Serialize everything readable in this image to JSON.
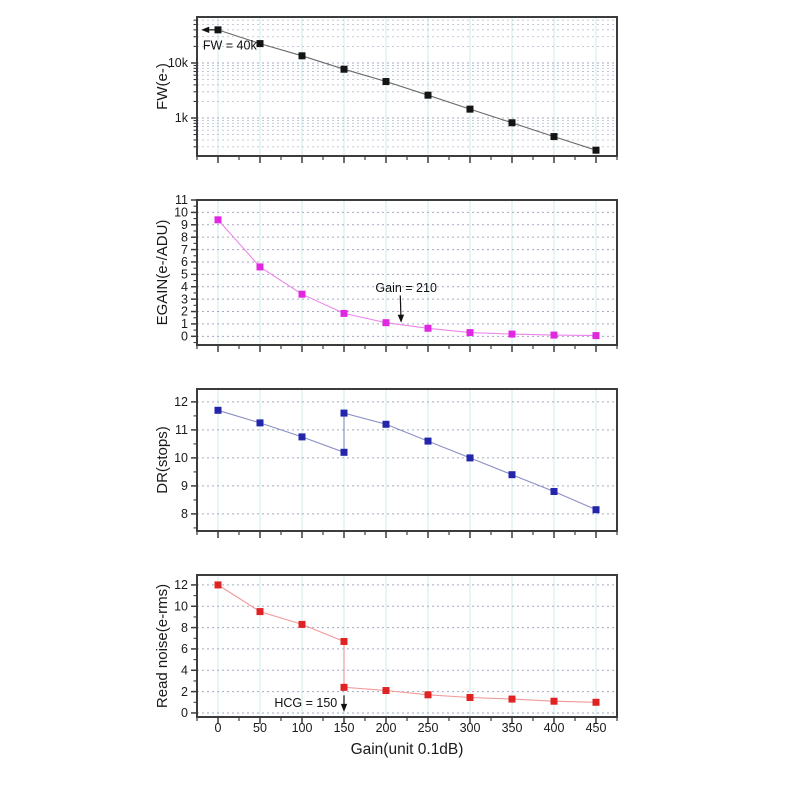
{
  "figure": {
    "background": "#ffffff",
    "x_axis": {
      "title": "Gain(unit 0.1dB)",
      "tick_values": [
        0,
        50,
        100,
        150,
        200,
        250,
        300,
        350,
        400,
        450
      ],
      "tick_labels": [
        "0",
        "50",
        "100",
        "150",
        "200",
        "250",
        "300",
        "350",
        "400",
        "450"
      ],
      "minor_step": 25,
      "xlim": [
        -25,
        475
      ]
    },
    "colors": {
      "grid_vertical": "#d8f2ee",
      "grid_horizontal": "#a2aabe",
      "grid_horizontal_minor": "#bcc3d4",
      "frame": "#3c3c3c",
      "text": "#1a1a1a",
      "annotation": "#111111"
    }
  },
  "chart_data": [
    {
      "type": "line",
      "name": "fw",
      "ylabel": "FW(e-)",
      "yscale": "log",
      "ylim": [
        204,
        68500
      ],
      "grid": true,
      "yticks": [
        {
          "value": 10000,
          "label": "10k"
        },
        {
          "value": 1000,
          "label": "1k"
        }
      ],
      "series": [
        {
          "name": "FW",
          "marker": "square",
          "marker_color": "#141414",
          "line_color": "#6a6a6a",
          "x": [
            0,
            50,
            100,
            150,
            200,
            250,
            300,
            350,
            400,
            450
          ],
          "y": [
            40000,
            22500,
            13500,
            7700,
            4600,
            2600,
            1450,
            820,
            460,
            260
          ]
        }
      ],
      "annotations": [
        {
          "text": "FW = 40k",
          "anchor": "start",
          "x": -18,
          "y": 21000,
          "arrow": {
            "x1": -4,
            "y1": 40000,
            "x2": -20,
            "y2": 40000
          }
        }
      ]
    },
    {
      "type": "line",
      "name": "egain",
      "ylabel": "EGAIN(e-/ADU)",
      "yscale": "linear",
      "ylim": [
        -0.7,
        11.0
      ],
      "grid": true,
      "minor_tick_step": 0.5,
      "yticks": [
        {
          "value": 0,
          "label": "0"
        },
        {
          "value": 1,
          "label": "1"
        },
        {
          "value": 2,
          "label": "2"
        },
        {
          "value": 3,
          "label": "3"
        },
        {
          "value": 4,
          "label": "4"
        },
        {
          "value": 5,
          "label": "5"
        },
        {
          "value": 6,
          "label": "6"
        },
        {
          "value": 7,
          "label": "7"
        },
        {
          "value": 8,
          "label": "8"
        },
        {
          "value": 9,
          "label": "9"
        },
        {
          "value": 10,
          "label": "10"
        },
        {
          "value": 11,
          "label": "11"
        }
      ],
      "series": [
        {
          "name": "EGAIN",
          "marker": "square",
          "marker_color": "#e128e1",
          "line_color": "#ea86ea",
          "x": [
            0,
            50,
            100,
            150,
            200,
            250,
            300,
            350,
            400,
            450
          ],
          "y": [
            9.4,
            5.6,
            3.4,
            1.85,
            1.1,
            0.65,
            0.3,
            0.18,
            0.1,
            0.06
          ]
        }
      ],
      "annotations": [
        {
          "text": "Gain = 210",
          "anchor": "middle",
          "x": 224,
          "y": 3.9,
          "arrow": {
            "x1": 217,
            "y1": 3.3,
            "x2": 218,
            "y2": 1.1
          }
        }
      ]
    },
    {
      "type": "line",
      "name": "dr",
      "ylabel": "DR(stops)",
      "yscale": "linear",
      "ylim": [
        7.39,
        12.46
      ],
      "grid": true,
      "minor_tick_step": 0.5,
      "yticks": [
        {
          "value": 8,
          "label": "8"
        },
        {
          "value": 9,
          "label": "9"
        },
        {
          "value": 10,
          "label": "10"
        },
        {
          "value": 11,
          "label": "11"
        },
        {
          "value": 12,
          "label": "12"
        }
      ],
      "series": [
        {
          "name": "DR",
          "marker": "square",
          "marker_color": "#2326ab",
          "line_color": "#8b8fc4",
          "x": [
            0,
            50,
            100,
            150,
            150,
            200,
            250,
            300,
            350,
            400,
            450
          ],
          "y": [
            11.7,
            11.25,
            10.75,
            10.2,
            11.6,
            11.2,
            10.6,
            10.0,
            9.4,
            8.8,
            8.15
          ]
        }
      ],
      "annotations": []
    },
    {
      "type": "line",
      "name": "read-noise",
      "ylabel": "Read noise(e-rms)",
      "yscale": "linear",
      "ylim": [
        -0.38,
        12.93
      ],
      "grid": true,
      "minor_tick_step": 1,
      "yticks": [
        {
          "value": 0,
          "label": "0"
        },
        {
          "value": 2,
          "label": "2"
        },
        {
          "value": 4,
          "label": "4"
        },
        {
          "value": 6,
          "label": "6"
        },
        {
          "value": 8,
          "label": "8"
        },
        {
          "value": 10,
          "label": "10"
        },
        {
          "value": 12,
          "label": "12"
        }
      ],
      "series": [
        {
          "name": "Read noise",
          "marker": "square",
          "marker_color": "#e02222",
          "line_color": "#f09a9a",
          "x": [
            0,
            50,
            100,
            150,
            150,
            200,
            250,
            300,
            350,
            400,
            450
          ],
          "y": [
            12.0,
            9.5,
            8.3,
            6.7,
            2.4,
            2.1,
            1.7,
            1.45,
            1.3,
            1.1,
            1.0
          ]
        }
      ],
      "annotations": [
        {
          "text": "HCG = 150",
          "anchor": "end",
          "x": 142,
          "y": 0.95,
          "arrow": {
            "x1": 150,
            "y1": 1.65,
            "x2": 150,
            "y2": 0.1
          }
        }
      ]
    }
  ]
}
